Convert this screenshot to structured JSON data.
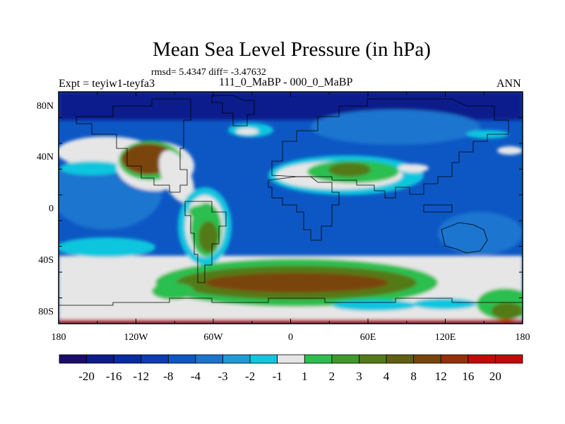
{
  "title": "Mean Sea Level Pressure (in hPa)",
  "stats": "rmsd= 5.4347 diff= -3.47632",
  "left_label": "Expt = teyiw1-teyfa3",
  "center_label": "111_0_MaBP - 000_0_MaBP",
  "right_label": "ANN",
  "axes": {
    "x_ticks": [
      "180",
      "120W",
      "60W",
      "0",
      "60E",
      "120E",
      "180"
    ],
    "y_ticks": [
      "80N",
      "40N",
      "0",
      "40S",
      "80S"
    ]
  },
  "colorbar": {
    "labels": [
      "-20",
      "-16",
      "-12",
      "-8",
      "-4",
      "-3",
      "-2",
      "-1",
      "1",
      "2",
      "3",
      "4",
      "8",
      "12",
      "16",
      "20"
    ],
    "colors": [
      "#1a0c6b",
      "#0d1a8c",
      "#0a2aa3",
      "#0a3cb5",
      "#0d57c4",
      "#1a75cf",
      "#1f9ad6",
      "#10c6de",
      "#e6e6e6",
      "#2cbf4f",
      "#3f9a2a",
      "#537a18",
      "#5e600f",
      "#7a4508",
      "#963006",
      "#c00b06"
    ]
  },
  "map_colors": {
    "ocean_deep": "#0a3cb5",
    "ocean_mid": "#0d57c4",
    "ocean_light": "#1a75cf",
    "cyan": "#10c6de",
    "neutral": "#e6e6e6",
    "green": "#2cbf4f",
    "olive": "#537a18",
    "brown": "#7a4508",
    "dark_blue": "#0d1a8c",
    "red": "#c00b06"
  }
}
